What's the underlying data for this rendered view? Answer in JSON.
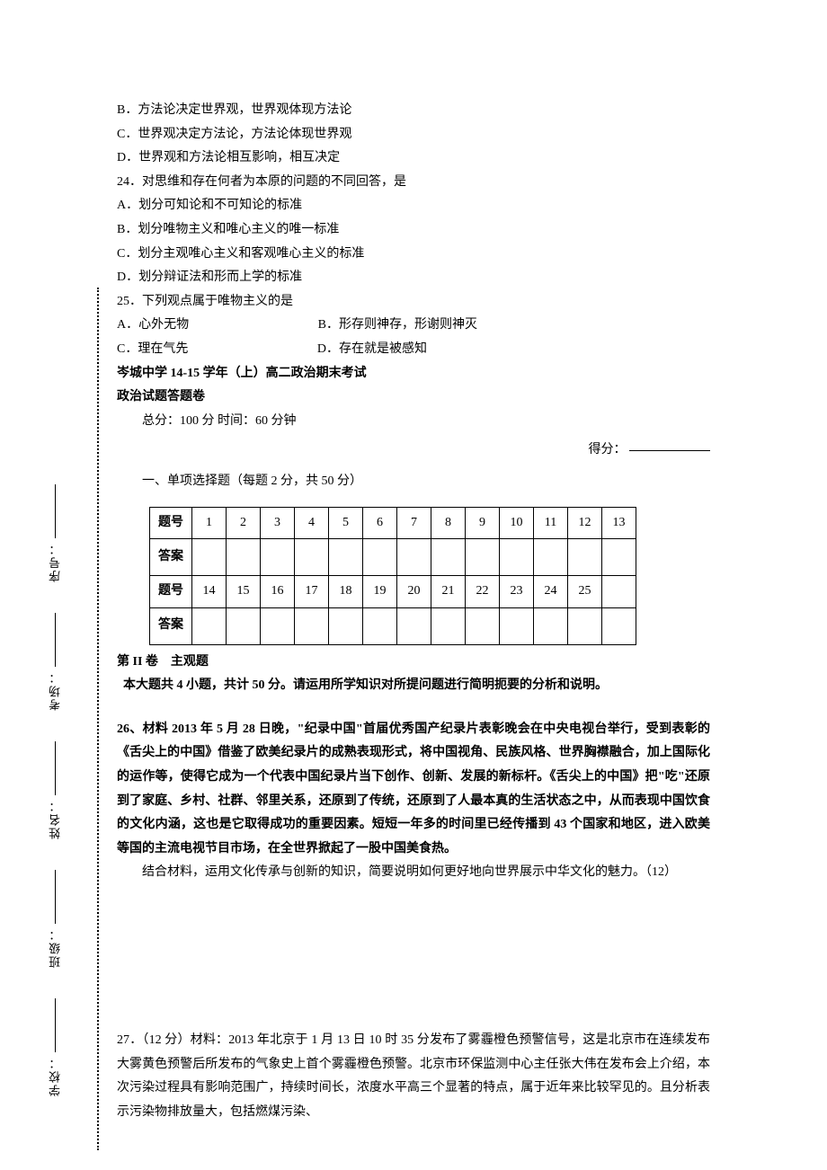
{
  "side": {
    "school": "学校：",
    "class": "班级：",
    "name": "姓名：",
    "room": "考场：",
    "seat": "序号："
  },
  "options": {
    "q23b": "B．方法论决定世界观，世界观体现方法论",
    "q23c": "C．世界观决定方法论，方法论体现世界观",
    "q23d": "D．世界观和方法论相互影响，相互决定",
    "q24stem": "24．对思维和存在何者为本原的问题的不同回答，是",
    "q24a": "A．划分可知论和不可知论的标准",
    "q24b": "B．划分唯物主义和唯心主义的唯一标准",
    "q24c": "C．划分主观唯心主义和客观唯心主义的标准",
    "q24d": "D．划分辩证法和形而上学的标准",
    "q25stem": "25．下列观点属于唯物主义的是",
    "q25a": "A．心外无物",
    "q25b": "B．形存则神存，形谢则神灭",
    "q25c": "C．理在气先",
    "q25d": "D．存在就是被感知"
  },
  "title1": "岑城中学 14-15 学年（上）高二政治期末考试",
  "title2": "政治试题答题卷",
  "meta": "总分：100 分  时间：60 分钟",
  "score_label": "得分：",
  "section1": "一、单项选择题（每题 2 分，共 50 分）",
  "table": {
    "row_label_q": "题号",
    "row_label_a": "答案",
    "nums1": [
      "1",
      "2",
      "3",
      "4",
      "5",
      "6",
      "7",
      "8",
      "9",
      "10",
      "11",
      "12",
      "13"
    ],
    "nums2": [
      "14",
      "15",
      "16",
      "17",
      "18",
      "19",
      "20",
      "21",
      "22",
      "23",
      "24",
      "25",
      ""
    ]
  },
  "part2_title": "第 II 卷　主观题",
  "part2_desc": "本大题共 4 小题，共计 50 分。请运用所学知识对所提问题进行简明扼要的分析和说明。",
  "q26": {
    "stem": "26、材料 2013 年 5 月 28 日晚，\"纪录中国\"首届优秀国产纪录片表彰晚会在中央电视台举行，受到表彰的《舌尖上的中国》借鉴了欧美纪录片的成熟表现形式，将中国视角、民族风格、世界胸襟融合，加上国际化的运作等，使得它成为一个代表中国纪录片当下创作、创新、发展的新标杆。《舌尖上的中国》把\"吃\"还原到了家庭、乡村、社群、邻里关系，还原到了传统，还原到了人最本真的生活状态之中，从而表现中国饮食的文化内涵，这也是它取得成功的重要因素。短短一年多的时间里已经传播到 43 个国家和地区，进入欧美等国的主流电视节目市场，在全世界掀起了一股中国美食热。",
    "ask": "结合材料，运用文化传承与创新的知识，简要说明如何更好地向世界展示中华文化的魅力。（12）"
  },
  "q27": {
    "stem": "27．（12 分）材料：2013 年北京于 1 月 13 日 10 时 35 分发布了雾霾橙色预警信号，这是北京市在连续发布大雾黄色预警后所发布的气象史上首个雾霾橙色预警。北京市环保监测中心主任张大伟在发布会上介绍，本次污染过程具有影响范围广，持续时间长，浓度水平高三个显著的特点，属于近年来比较罕见的。且分析表示污染物排放量大，包括燃煤污染、"
  }
}
